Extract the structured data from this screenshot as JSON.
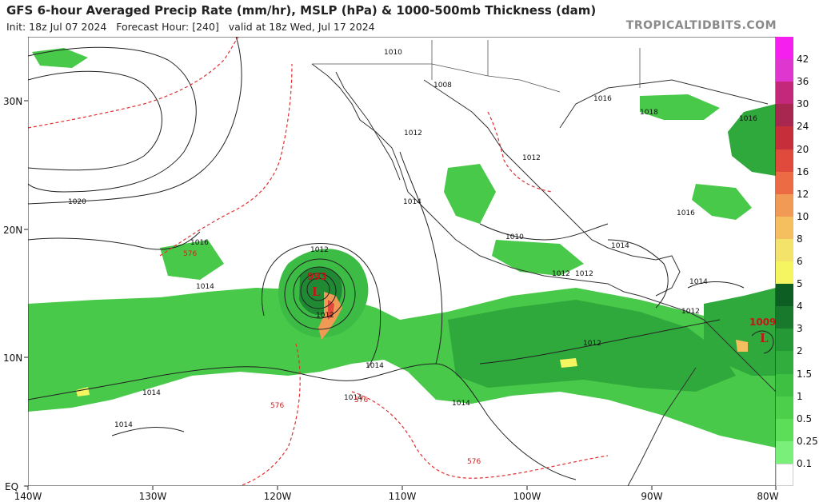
{
  "header": {
    "title": "GFS 6-hour Averaged Precip Rate (mm/hr), MSLP (hPa) & 1000-500mb Thickness (dam)",
    "init": "Init: 18z Jul 07 2024",
    "forecast_hour": "Forecast Hour: [240]",
    "valid": "valid at 18z Wed, Jul 17 2024",
    "brand": "TROPICALTIDBITS.COM"
  },
  "axes": {
    "lat_labels": [
      "30N",
      "20N",
      "10N",
      "EQ"
    ],
    "lon_labels": [
      "140W",
      "130W",
      "120W",
      "110W",
      "100W",
      "90W",
      "80W"
    ]
  },
  "colorbar": {
    "labels": [
      "42",
      "36",
      "30",
      "24",
      "20",
      "16",
      "12",
      "10",
      "8",
      "6",
      "5",
      "4",
      "3",
      "2",
      "1.5",
      "1",
      "0.5",
      "0.25",
      "0.1"
    ],
    "colors": [
      "#f51ff0",
      "#e036d0",
      "#c3287a",
      "#a82750",
      "#c62f3a",
      "#e04a3c",
      "#ec6b45",
      "#f19a55",
      "#f5bf5f",
      "#f3e36a",
      "#f5f562",
      "#0d5e23",
      "#18792d",
      "#249936",
      "#31ad3d",
      "#3ec043",
      "#4cd04c",
      "#5cde58",
      "#7af07a"
    ]
  },
  "pressure_labels": [
    "1010",
    "1008",
    "1012",
    "1016",
    "1018",
    "1016",
    "1012",
    "1020",
    "1014",
    "1016",
    "1014",
    "1012",
    "1010",
    "1016",
    "1014",
    "1012",
    "1012",
    "1014",
    "1012",
    "1012",
    "1014",
    "1014",
    "1012",
    "1014",
    "1014",
    "1014"
  ],
  "thickness_labels": [
    "576",
    "576",
    "576",
    "576"
  ],
  "lows": [
    {
      "pressure": "993",
      "symbol": "L"
    },
    {
      "pressure": "1009",
      "symbol": "L"
    }
  ],
  "colors": {
    "isobar": "#222222",
    "thickness": "#e03030",
    "border": "#333333",
    "ocean": "#ffffff"
  }
}
